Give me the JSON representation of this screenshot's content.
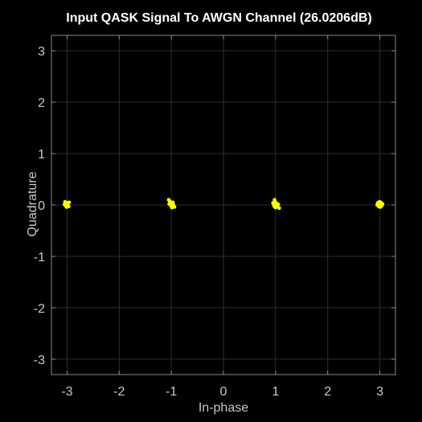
{
  "figure": {
    "title": "Input QASK Signal To AWGN Channel (26.0206dB)",
    "background": "#000000",
    "axes_color": "#8a8a8a",
    "grid_color": "#2e2e2e",
    "tick_label_color": "#c8c8c8",
    "marker_color": "#ffff00"
  },
  "chart_data": {
    "type": "scatter",
    "title": "Input QASK Signal To AWGN Channel (26.0206dB)",
    "xlabel": "In-phase",
    "ylabel": "Quadrature",
    "xlim": [
      -3.3,
      3.3
    ],
    "ylim": [
      -3.3,
      3.3
    ],
    "grid": true,
    "legend": "none",
    "xticks": [
      -3,
      -2,
      -1,
      0,
      1,
      2,
      3
    ],
    "yticks": [
      -3,
      -2,
      -1,
      0,
      1,
      2,
      3
    ],
    "series": [
      {
        "color": "#ffff00",
        "points": [
          [
            -3.02,
            0.03
          ],
          [
            -2.98,
            -0.02
          ],
          [
            -3.05,
            0.01
          ],
          [
            -2.96,
            0.05
          ],
          [
            -3.01,
            -0.04
          ],
          [
            -3.04,
            0.06
          ],
          [
            -2.99,
            0.02
          ],
          [
            -3.03,
            -0.01
          ],
          [
            -2.97,
            -0.03
          ],
          [
            -3.0,
            0.04
          ],
          [
            -1.05,
            0.1
          ],
          [
            -1.02,
            0.04
          ],
          [
            -0.98,
            0.01
          ],
          [
            -0.95,
            -0.03
          ],
          [
            -1.01,
            -0.01
          ],
          [
            -0.97,
            0.05
          ],
          [
            -1.04,
            0.02
          ],
          [
            -0.99,
            -0.05
          ],
          [
            -1.03,
            0.07
          ],
          [
            -0.96,
            0.0
          ],
          [
            -1.0,
            0.03
          ],
          [
            -0.94,
            -0.04
          ],
          [
            0.98,
            0.1
          ],
          [
            1.02,
            0.03
          ],
          [
            0.97,
            -0.02
          ],
          [
            1.05,
            0.01
          ],
          [
            1.0,
            -0.05
          ],
          [
            0.95,
            0.04
          ],
          [
            1.03,
            -0.03
          ],
          [
            1.07,
            -0.06
          ],
          [
            0.99,
            0.06
          ],
          [
            1.01,
            0.0
          ],
          [
            2.96,
            0.04
          ],
          [
            3.0,
            0.01
          ],
          [
            3.03,
            -0.02
          ],
          [
            2.98,
            -0.03
          ],
          [
            3.02,
            0.05
          ],
          [
            2.95,
            0.0
          ],
          [
            3.05,
            0.02
          ],
          [
            2.99,
            0.06
          ],
          [
            3.01,
            -0.04
          ],
          [
            2.97,
            0.03
          ],
          [
            3.04,
            -0.01
          ]
        ]
      }
    ]
  }
}
